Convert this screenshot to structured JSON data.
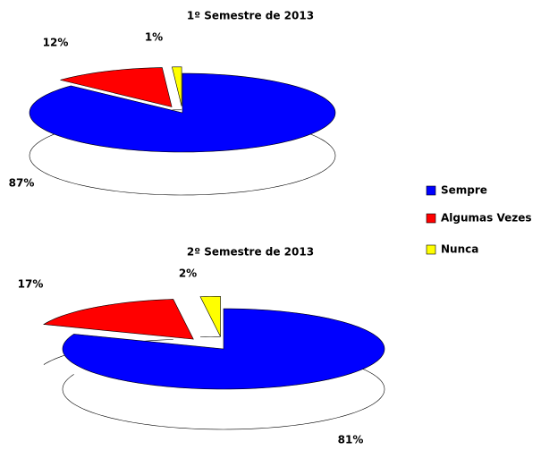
{
  "chart_data": [
    {
      "type": "pie",
      "title": "1º Semestre de 2013",
      "categories": [
        "Sempre",
        "Algumas Vezes",
        "Nunca"
      ],
      "values": [
        87,
        12,
        1
      ],
      "value_labels": [
        "87%",
        "12%",
        "1%"
      ],
      "colors": [
        "#0000ff",
        "#ff0000",
        "#ffff00"
      ],
      "legend": "right"
    },
    {
      "type": "pie",
      "title": "2º Semestre de 2013",
      "categories": [
        "Sempre",
        "Algumas Vezes",
        "Nunca"
      ],
      "values": [
        81,
        17,
        2
      ],
      "value_labels": [
        "81%",
        "17%",
        "2%"
      ],
      "colors": [
        "#0000ff",
        "#ff0000",
        "#ffff00"
      ]
    }
  ]
}
